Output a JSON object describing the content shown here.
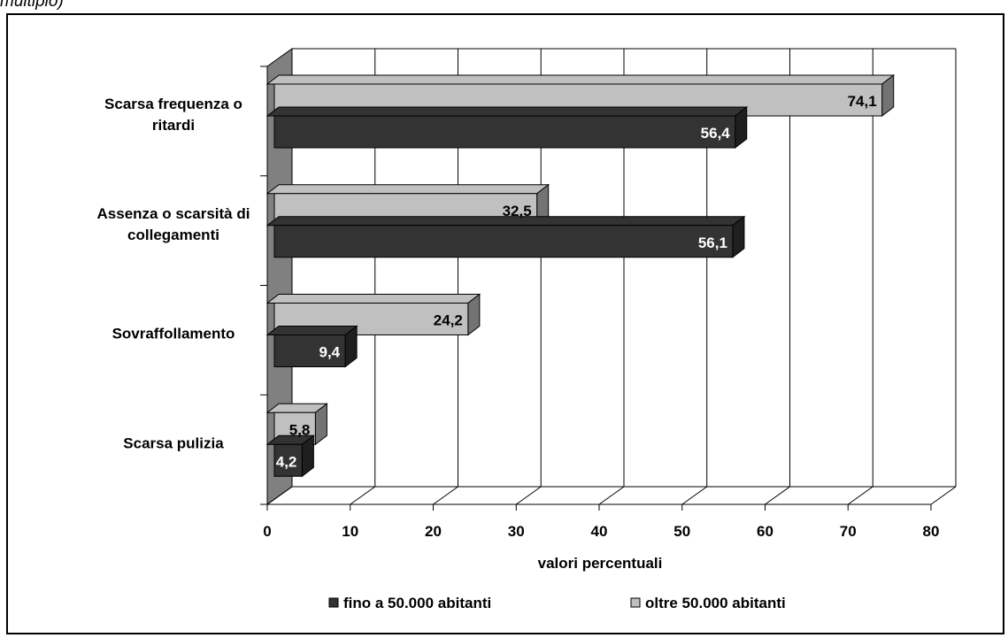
{
  "caption_fragment": "multiplo)",
  "chart_data": {
    "type": "bar",
    "orientation": "horizontal",
    "style": "3d-clustered",
    "categories": [
      "Scarsa frequenza o ritardi",
      "Assenza o scarsità di collegamenti",
      "Sovraffollamento",
      "Scarsa pulizia"
    ],
    "category_labels": [
      [
        "Scarsa frequenza o",
        "ritardi"
      ],
      [
        "Assenza o scarsità di",
        "collegamenti"
      ],
      [
        "Sovraffollamento"
      ],
      [
        "Scarsa pulizia"
      ]
    ],
    "series": [
      {
        "name": "fino a 50.000 abitanti",
        "color": "#333333",
        "values": [
          56.4,
          56.1,
          9.4,
          4.2
        ],
        "labels": [
          "56,4",
          "56,1",
          "9,4",
          "4,2"
        ]
      },
      {
        "name": "oltre 50.000 abitanti",
        "color": "#c0c0c0",
        "values": [
          74.1,
          32.5,
          24.2,
          5.8
        ],
        "labels": [
          "74,1",
          "32,5",
          "24,2",
          "5,8"
        ]
      }
    ],
    "xlabel": "valori percentuali",
    "ylabel": "",
    "xlim": [
      0,
      80
    ],
    "xticks": [
      0,
      10,
      20,
      30,
      40,
      50,
      60,
      70,
      80
    ],
    "grid": true,
    "legend_position": "bottom",
    "wall_color": "#808080"
  }
}
